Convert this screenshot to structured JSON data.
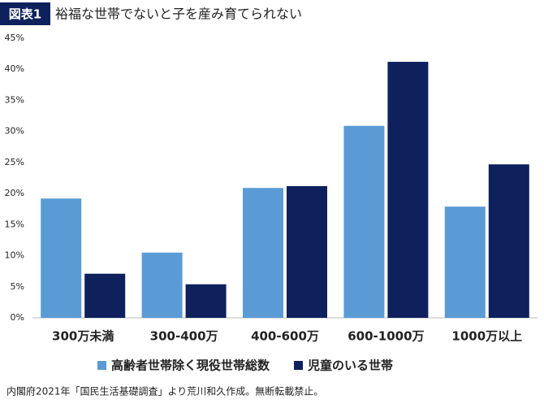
{
  "chart_data": {
    "type": "bar",
    "badge": "図表1",
    "title": "裕福な世帯でないと子を産み育てられない",
    "categories": [
      "300万未満",
      "300-400万",
      "400-600万",
      "600-1000万",
      "1000万以上"
    ],
    "series": [
      {
        "name": "高齢者世帯除く現役世帯総数",
        "color": "#5b9bd5",
        "values": [
          19.2,
          10.5,
          20.9,
          30.9,
          17.9
        ]
      },
      {
        "name": "児童のいる世帯",
        "color": "#0e215d",
        "values": [
          7.1,
          5.4,
          21.2,
          41.2,
          24.7
        ]
      }
    ],
    "ylim": [
      0,
      45
    ],
    "yticks": [
      {
        "value": 0,
        "label": "0%"
      },
      {
        "value": 5,
        "label": "5%"
      },
      {
        "value": 10,
        "label": "10%"
      },
      {
        "value": 15,
        "label": "15%"
      },
      {
        "value": 20,
        "label": "20%"
      },
      {
        "value": 25,
        "label": "25%"
      },
      {
        "value": 30,
        "label": "30%"
      },
      {
        "value": 35,
        "label": "35%"
      },
      {
        "value": 40,
        "label": "40%"
      },
      {
        "value": 45,
        "label": "45%"
      }
    ],
    "grid": false,
    "legend": "bottom",
    "source": "内閣府2021年「国民生活基礎調査」より荒川和久作成。無断転載禁止。"
  }
}
